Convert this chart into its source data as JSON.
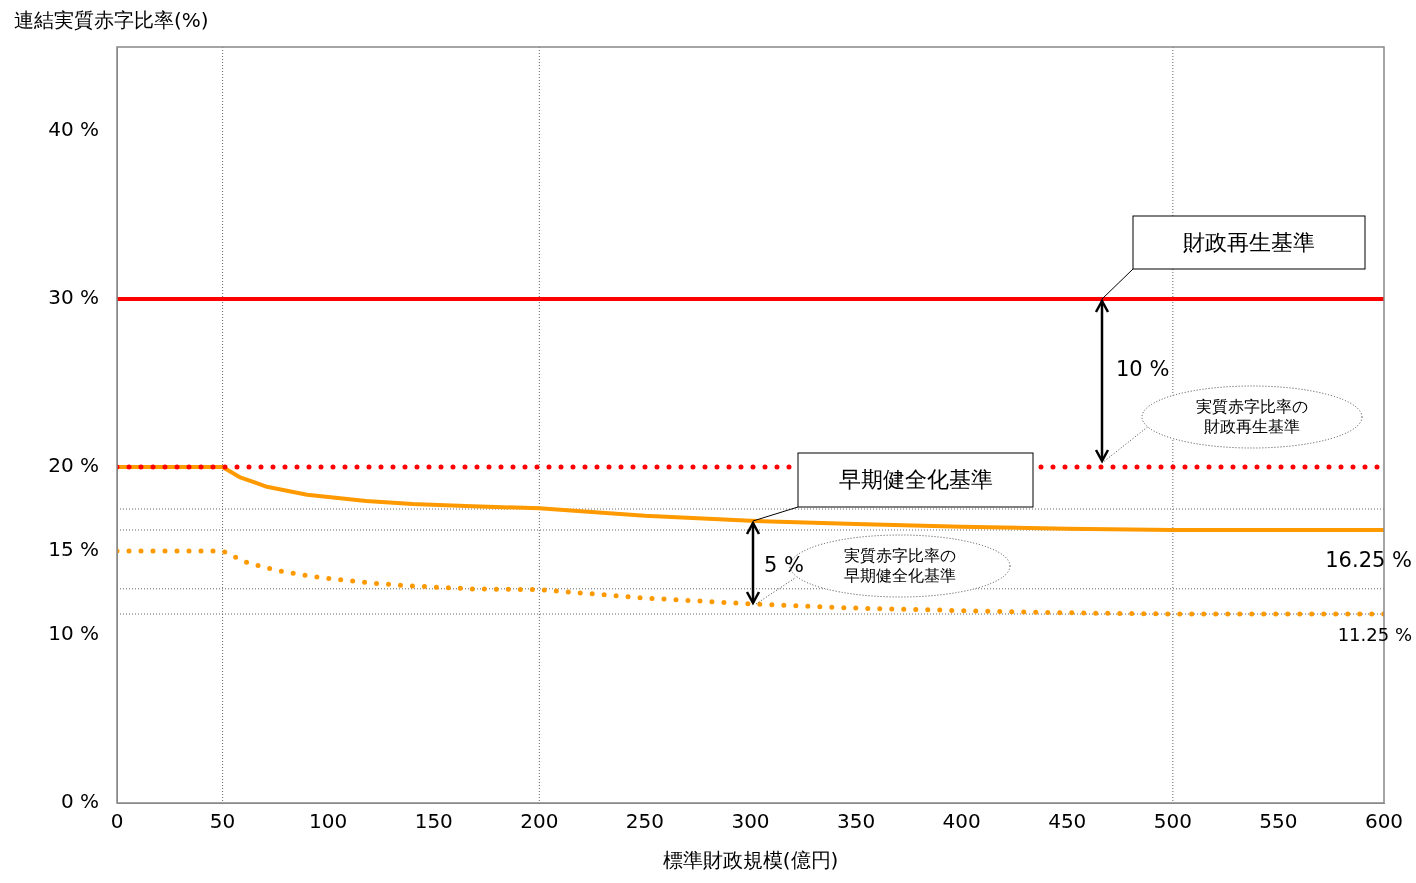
{
  "chart_data": {
    "type": "line",
    "xlabel": "標準財政規模(億円)",
    "ylabel": "連結実質赤字比率(%)",
    "series": [
      {
        "color": "#ff0000",
        "line_style": "solid",
        "x": [
          0,
          600
        ],
        "values": [
          30,
          30
        ]
      },
      {
        "color": "#ff0000",
        "line_style": "dotted",
        "x": [
          0,
          600
        ],
        "values": [
          20,
          20
        ]
      },
      {
        "color": "#ff9900",
        "line_style": "solid",
        "x": [
          0,
          50,
          58,
          71,
          90,
          118,
          140,
          165,
          200,
          250,
          300,
          350,
          400,
          450,
          500,
          600
        ],
        "values": [
          20,
          20,
          19.4,
          18.82,
          18.35,
          17.98,
          17.8,
          17.68,
          17.54,
          17.1,
          16.8,
          16.6,
          16.45,
          16.33,
          16.25,
          16.25
        ]
      },
      {
        "color": "#ff9900",
        "line_style": "dotted",
        "x": [
          0,
          50,
          54,
          61,
          68.5,
          76,
          91.4,
          106.7,
          122.3,
          138,
          153.4,
          169,
          200,
          250,
          300,
          350,
          400,
          450,
          500,
          600
        ],
        "values": [
          15,
          15,
          14.76,
          14.35,
          14.07,
          13.84,
          13.51,
          13.27,
          13.07,
          12.93,
          12.83,
          12.74,
          12.7,
          12.2,
          11.85,
          11.6,
          11.45,
          11.32,
          11.25,
          11.25
        ]
      }
    ],
    "xlim": [
      0,
      600
    ],
    "xticks": [
      0,
      50,
      100,
      150,
      200,
      250,
      300,
      350,
      400,
      450,
      500,
      550,
      600
    ],
    "ylim": [
      0,
      45
    ],
    "yticks": [
      {
        "value": 0,
        "label": "0 %"
      },
      {
        "value": 10,
        "label": "10 %"
      },
      {
        "value": 15,
        "label": "15 %"
      },
      {
        "value": 20,
        "label": "20 %"
      },
      {
        "value": 30,
        "label": "30 %"
      },
      {
        "value": 40,
        "label": "40 %"
      }
    ],
    "ref_lines": [
      {
        "axis": "x",
        "value": 50,
        "color": "#666666",
        "line_style": "dotted"
      },
      {
        "axis": "x",
        "value": 200,
        "color": "#666666",
        "line_style": "dotted"
      },
      {
        "axis": "x",
        "value": 500,
        "color": "#666666",
        "line_style": "dotted"
      },
      {
        "axis": "y",
        "value": 17.5,
        "color": "#666666",
        "line_style": "dotted"
      },
      {
        "axis": "y",
        "value": 16.25,
        "color": "#666666",
        "line_style": "dotted"
      },
      {
        "axis": "y",
        "value": 12.75,
        "color": "#666666",
        "line_style": "dotted"
      },
      {
        "axis": "y",
        "value": 11.25,
        "color": "#666666",
        "line_style": "dotted"
      }
    ],
    "annotations": [
      "財政再生基準",
      "10 %",
      "実質赤字比率の財政再生基準",
      "早期健全化基準",
      "5 %",
      "実質赤字比率の早期健全化基準",
      "16.25 %",
      "11.25 %"
    ],
    "grid": false,
    "legend": false,
    "marker": "none"
  }
}
